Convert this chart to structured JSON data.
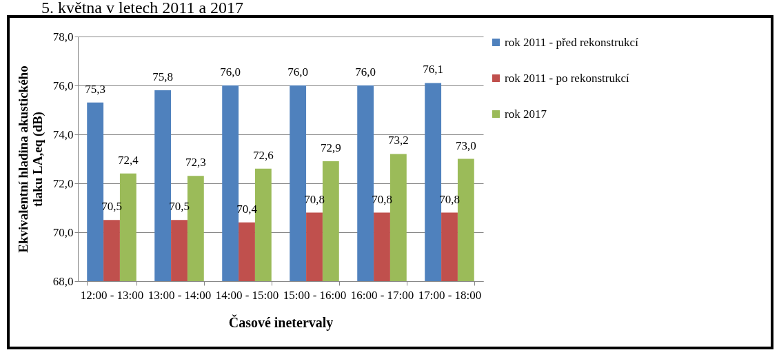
{
  "chart_data": {
    "type": "bar",
    "title": "5. května v letech 2011 a 2017",
    "xlabel": "Časové inetervaly",
    "ylabel": "Ekvivalentní hladina akustického tlaku LA,eq (dB)",
    "categories": [
      "12:00 - 13:00",
      "13:00 - 14:00",
      "14:00 - 15:00",
      "15:00 - 16:00",
      "16:00 - 17:00",
      "17:00 - 18:00"
    ],
    "series": [
      {
        "name": "rok 2011 - před rekonstrukcí",
        "color": "#4f81bd",
        "values": [
          75.3,
          75.8,
          76.0,
          76.0,
          76.0,
          76.1
        ],
        "value_labels": [
          "75,3",
          "75,8",
          "76,0",
          "76,0",
          "76,0",
          "76,1"
        ]
      },
      {
        "name": "rok 2011 - po rekonstrukcí",
        "color": "#c0504d",
        "values": [
          70.5,
          70.5,
          70.4,
          70.8,
          70.8,
          70.8
        ],
        "value_labels": [
          "70,5",
          "70,5",
          "70,4",
          "70,8",
          "70,8",
          "70,8"
        ]
      },
      {
        "name": "rok 2017",
        "color": "#9bbb59",
        "values": [
          72.4,
          72.3,
          72.6,
          72.9,
          73.2,
          73.0
        ],
        "value_labels": [
          "72,4",
          "72,3",
          "72,6",
          "72,9",
          "73,2",
          "73,0"
        ]
      }
    ],
    "ylim": [
      68,
      78
    ],
    "yticks": [
      {
        "value": 68,
        "label": "68,0"
      },
      {
        "value": 70,
        "label": "70,0"
      },
      {
        "value": 72,
        "label": "72,0"
      },
      {
        "value": 74,
        "label": "74,0"
      },
      {
        "value": 76,
        "label": "76,0"
      },
      {
        "value": 78,
        "label": "78,0"
      }
    ],
    "grid": "y",
    "legend": "right"
  }
}
